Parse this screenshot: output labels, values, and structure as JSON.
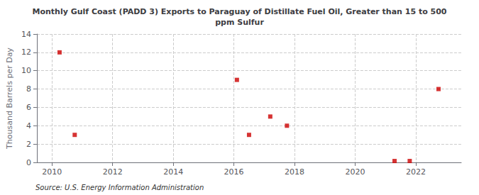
{
  "chart_data": {
    "type": "scatter",
    "title": "Monthly Gulf Coast (PADD 3) Exports to Paraguay of Distillate Fuel Oil, Greater than 15 to 500\nppm Sulfur",
    "ylabel": "Thousand Barrels per Day",
    "source": "Source: U.S. Energy Information Administration",
    "x": [
      2010.25,
      2010.75,
      2016.1,
      2016.5,
      2017.2,
      2017.75,
      2021.3,
      2021.8,
      2022.75
    ],
    "values": [
      12,
      3,
      9,
      3,
      5,
      4,
      0.15,
      0.15,
      8
    ],
    "color": "#cc0000",
    "marker": "square",
    "xlim": [
      2009.5,
      2023.5
    ],
    "xticks": [
      2010,
      2012,
      2014,
      2016,
      2018,
      2020,
      2022
    ],
    "ylim": [
      0,
      14
    ],
    "yticks": [
      0,
      2,
      4,
      6,
      8,
      10,
      12,
      14
    ],
    "grid": true
  }
}
